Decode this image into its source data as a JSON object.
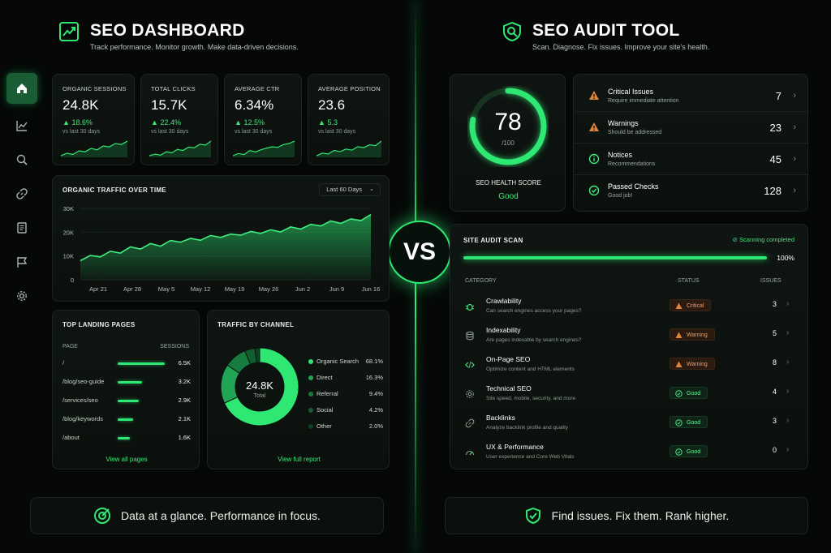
{
  "left": {
    "title": "SEO DASHBOARD",
    "subtitle": "Track performance. Monitor growth. Make data-driven decisions.",
    "kpis": [
      {
        "label": "ORGANIC SESSIONS",
        "value": "24.8K",
        "delta": "18.6%",
        "vs": "vs last 30 days"
      },
      {
        "label": "TOTAL CLICKS",
        "value": "15.7K",
        "delta": "22.4%",
        "vs": "vs last 30 days"
      },
      {
        "label": "AVERAGE CTR",
        "value": "6.34%",
        "delta": "12.5%",
        "vs": "vs last 30 days"
      },
      {
        "label": "AVERAGE POSITION",
        "value": "23.6",
        "delta": "5.3",
        "vs": "vs last 30 days"
      }
    ],
    "traffic": {
      "title": "ORGANIC TRAFFIC OVER TIME",
      "range_label": "Last 60 Days"
    },
    "landing": {
      "title": "TOP LANDING PAGES",
      "col_page": "PAGE",
      "col_sessions": "SESSIONS",
      "rows": [
        {
          "page": "/",
          "sessions": "6.5K",
          "bar": 1.0
        },
        {
          "page": "/blog/seo-guide",
          "sessions": "3.2K",
          "bar": 0.52
        },
        {
          "page": "/services/seo",
          "sessions": "2.9K",
          "bar": 0.45
        },
        {
          "page": "/blog/keywords",
          "sessions": "2.1K",
          "bar": 0.32
        },
        {
          "page": "/about",
          "sessions": "1.6K",
          "bar": 0.26
        }
      ],
      "link": "View all pages"
    },
    "channel": {
      "title": "TRAFFIC BY CHANNEL",
      "total_value": "24.8K",
      "total_label": "Total",
      "link": "View full report"
    },
    "footer": "Data at a glance. Performance in focus."
  },
  "vs": "VS",
  "right": {
    "title": "SEO AUDIT TOOL",
    "subtitle": "Scan. Diagnose. Fix issues. Improve your site's health.",
    "score": {
      "value": "78",
      "max": "/100",
      "label": "SEO HEALTH SCORE",
      "status": "Good",
      "fraction": 0.78
    },
    "summary": [
      {
        "title": "Critical Issues",
        "sub": "Require immediate attention",
        "count": "7",
        "icon": "warning-icon",
        "color": "#e0843a"
      },
      {
        "title": "Warnings",
        "sub": "Should be addressed",
        "count": "23",
        "icon": "warning-icon",
        "color": "#e0843a"
      },
      {
        "title": "Notices",
        "sub": "Recommendations",
        "count": "45",
        "icon": "info-icon",
        "color": "#3ee879"
      },
      {
        "title": "Passed Checks",
        "sub": "Good job!",
        "count": "128",
        "icon": "check-icon",
        "color": "#3ee879"
      }
    ],
    "scan": {
      "title": "SITE AUDIT SCAN",
      "status": "Scanning completed",
      "progress": 1.0,
      "progress_label": "100%",
      "col_category": "CATEGORY",
      "col_status": "STATUS",
      "col_issues": "ISSUES",
      "rows": [
        {
          "name": "Crawlability",
          "desc": "Can search engines access your pages?",
          "status": "Critical",
          "kind": "bad",
          "issues": "3",
          "icon": "bug-icon"
        },
        {
          "name": "Indexability",
          "desc": "Are pages indexable by search engines?",
          "status": "Warning",
          "kind": "bad",
          "issues": "5",
          "icon": "database-icon"
        },
        {
          "name": "On-Page SEO",
          "desc": "Optimize content and HTML elements",
          "status": "Warning",
          "kind": "bad",
          "issues": "8",
          "icon": "code-icon"
        },
        {
          "name": "Technical SEO",
          "desc": "Site speed, mobile, security, and more",
          "status": "Good",
          "kind": "good",
          "issues": "4",
          "icon": "gear-icon"
        },
        {
          "name": "Backlinks",
          "desc": "Analyze backlink profile and quality",
          "status": "Good",
          "kind": "good",
          "issues": "3",
          "icon": "link-icon"
        },
        {
          "name": "UX & Performance",
          "desc": "User experience and Core Web Vitals",
          "status": "Good",
          "kind": "good",
          "issues": "0",
          "icon": "gauge-icon"
        }
      ]
    },
    "footer": "Find issues. Fix them. Rank higher."
  },
  "chart_data": [
    {
      "type": "area",
      "title": "ORGANIC TRAFFIC OVER TIME",
      "x_ticks": [
        "Apr 21",
        "Apr 28",
        "May 5",
        "May 12",
        "May 19",
        "May 26",
        "Jun 2",
        "Jun 9",
        "Jun 16"
      ],
      "y_ticks": [
        "0",
        "10K",
        "20K",
        "30K"
      ],
      "ylim": [
        0,
        30000
      ],
      "series": [
        {
          "values": [
            8000,
            10200,
            9600,
            12000,
            11200,
            13800,
            12900,
            15200,
            14100,
            16500,
            15800,
            17400,
            16600,
            18600,
            17800,
            19200,
            18700,
            20300,
            19500,
            21000,
            20100,
            22200,
            21300,
            23300,
            22600,
            24700,
            23700,
            25600,
            24900,
            27400
          ]
        }
      ]
    },
    {
      "type": "pie",
      "title": "TRAFFIC BY CHANNEL",
      "categories": [
        "Organic Search",
        "Direct",
        "Referral",
        "Social",
        "Other"
      ],
      "values": [
        68.1,
        16.3,
        9.4,
        4.2,
        2.0
      ],
      "labels": [
        "68.1%",
        "16.3%",
        "9.4%",
        "4.2%",
        "2.0%"
      ],
      "colors": [
        "#2ee873",
        "#1fa553",
        "#177a3f",
        "#125e31",
        "#0c4224"
      ]
    }
  ],
  "sparklines": [
    [
      3,
      4,
      3.5,
      5,
      4.6,
      6,
      5.4,
      7,
      6.6,
      8,
      7.6,
      9
    ],
    [
      3,
      3.6,
      3.2,
      4.5,
      4.1,
      5.4,
      5,
      6.3,
      6,
      7.4,
      7.1,
      8.6
    ],
    [
      3,
      3.8,
      3.4,
      4.9,
      4.4,
      5.2,
      5.8,
      6.3,
      6.1,
      7.1,
      7.5,
      8.4
    ],
    [
      3,
      4,
      3.7,
      5.1,
      4.6,
      5.6,
      5.2,
      6.6,
      6.2,
      7.3,
      7,
      8.8
    ]
  ]
}
